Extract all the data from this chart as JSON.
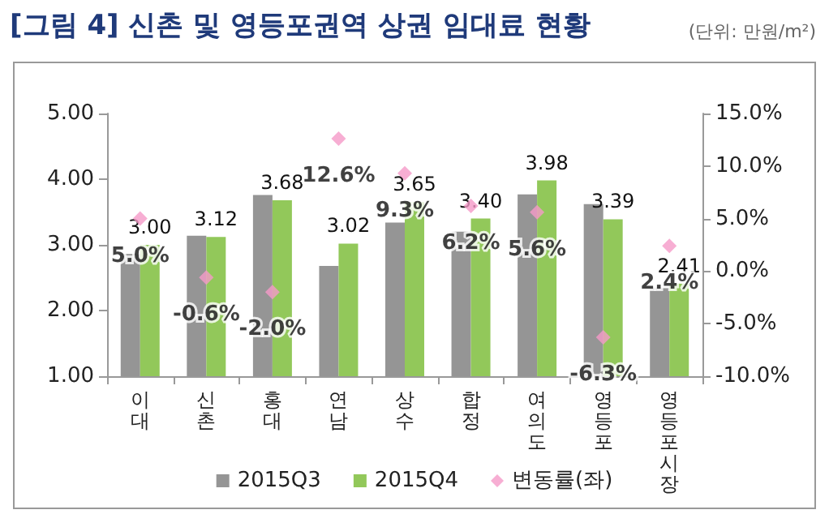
{
  "chart_data": {
    "type": "bar",
    "title": "[그림 4] 신촌 및 영등포권역 상권 임대료 현황",
    "subtitle": "(단위: 만원/m²)",
    "categories": [
      "이대",
      "신촌",
      "홍대",
      "연남",
      "상수",
      "합정",
      "여의도",
      "영등포",
      "영등포시장"
    ],
    "series": [
      {
        "name": "2015Q3",
        "color": "#959595",
        "values": [
          2.86,
          3.14,
          3.76,
          2.68,
          3.34,
          3.2,
          3.77,
          3.62,
          2.35
        ]
      },
      {
        "name": "2015Q4",
        "color": "#92c85a",
        "values": [
          3.0,
          3.12,
          3.68,
          3.02,
          3.65,
          3.4,
          3.98,
          3.39,
          2.41
        ],
        "value_labels": [
          "3.00",
          "3.12",
          "3.68",
          "3.02",
          "3.65",
          "3.40",
          "3.98",
          "3.39",
          "2.41"
        ]
      },
      {
        "name": "변동률(좌)",
        "type": "scatter",
        "axis": "y2",
        "color": "#f59ac8",
        "marker": "diamond",
        "values": [
          5.0,
          -0.6,
          -2.0,
          12.6,
          9.3,
          6.2,
          5.6,
          -6.3,
          2.4
        ],
        "value_labels": [
          "5.0%",
          "-0.6%",
          "-2.0%",
          "12.6%",
          "9.3%",
          "6.2%",
          "5.6%",
          "-6.3%",
          "2.4%"
        ]
      }
    ],
    "ylim": [
      1,
      5
    ],
    "yticks": [
      {
        "value": 1,
        "label": "1.00"
      },
      {
        "value": 2,
        "label": "2.00"
      },
      {
        "value": 3,
        "label": "3.00"
      },
      {
        "value": 4,
        "label": "4.00"
      },
      {
        "value": 5,
        "label": "5.00"
      }
    ],
    "y2lim": [
      -10,
      15
    ],
    "y2ticks": [
      {
        "value": -10,
        "label": "-10.0%"
      },
      {
        "value": -5,
        "label": "-5.0%"
      },
      {
        "value": 0,
        "label": "0.0%"
      },
      {
        "value": 5,
        "label": "5.0%"
      },
      {
        "value": 10,
        "label": "10.0%"
      },
      {
        "value": 15,
        "label": "15.0%"
      }
    ],
    "legend": "bottom",
    "grid": false
  }
}
